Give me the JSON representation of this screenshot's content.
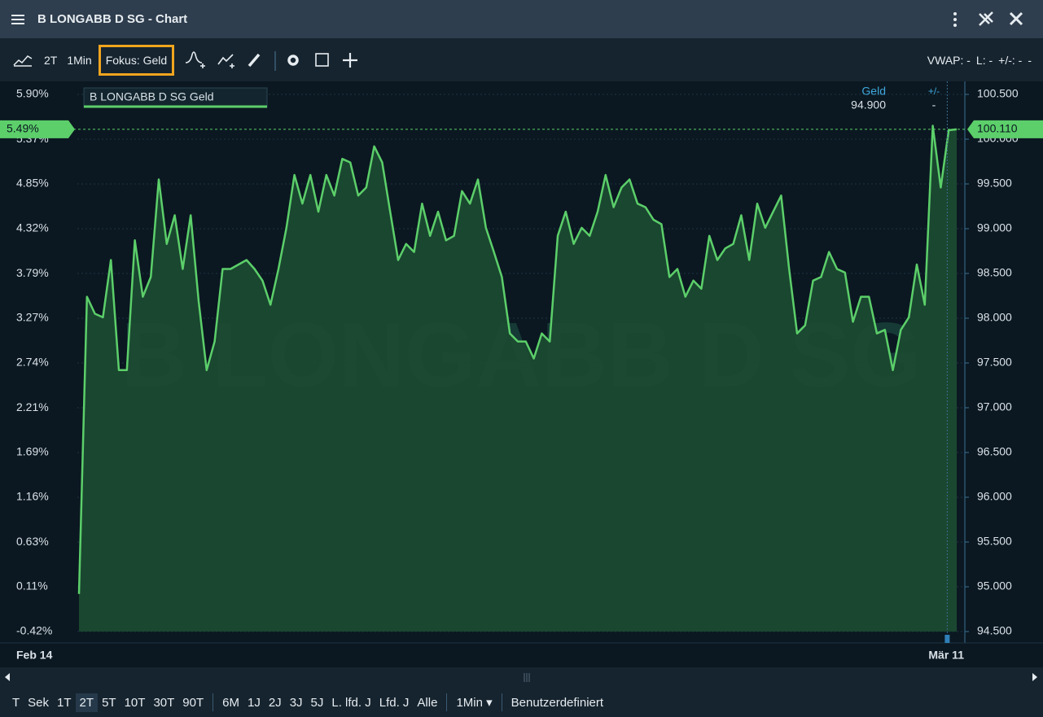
{
  "window": {
    "title": "B LONGABB D SG - Chart"
  },
  "toolbar": {
    "items": [
      "2T",
      "1Min"
    ],
    "focus": "Fokus: Geld",
    "status": [
      "VWAP: -",
      "L: -",
      "+/-: -",
      "-"
    ]
  },
  "info": {
    "bid_label": "Geld",
    "bid_value": "94.900",
    "change_label": "+/-",
    "change_value": "-"
  },
  "watermark": "B LONGABB D SG",
  "chart_data": {
    "type": "line",
    "series": [
      {
        "name": "B LONGABB D SG Geld",
        "color": "#5ccf6a",
        "values": [
          94.92,
          98.24,
          98.05,
          98.01,
          98.65,
          97.42,
          97.42,
          98.87,
          98.24,
          98.46,
          99.55,
          98.83,
          99.15,
          98.55,
          99.15,
          98.19,
          97.42,
          97.74,
          98.55,
          98.55,
          98.6,
          98.65,
          98.55,
          98.42,
          98.15,
          98.55,
          99.01,
          99.6,
          99.28,
          99.6,
          99.19,
          99.6,
          99.37,
          99.78,
          99.74,
          99.37,
          99.46,
          99.92,
          99.74,
          99.19,
          98.65,
          98.83,
          98.74,
          99.28,
          98.92,
          99.19,
          98.87,
          98.92,
          99.42,
          99.28,
          99.55,
          99.01,
          98.74,
          98.46,
          97.83,
          97.74,
          97.74,
          97.55,
          97.83,
          97.74,
          98.92,
          99.19,
          98.83,
          99.01,
          98.92,
          99.19,
          99.6,
          99.24,
          99.46,
          99.55,
          99.28,
          99.24,
          99.1,
          99.05,
          98.46,
          98.55,
          98.24,
          98.42,
          98.33,
          98.92,
          98.65,
          98.78,
          98.83,
          99.15,
          98.65,
          99.28,
          99.01,
          99.19,
          99.37,
          98.55,
          97.83,
          97.92,
          98.42,
          98.46,
          98.74,
          98.55,
          98.51,
          97.96,
          98.24,
          98.24,
          97.83,
          97.87,
          97.42,
          97.87,
          98.01,
          98.6,
          98.15,
          100.15,
          99.46,
          100.1,
          100.11
        ]
      }
    ],
    "categories": [
      "Feb 14",
      null,
      null,
      null,
      null,
      null,
      null,
      null,
      null,
      null,
      null,
      null,
      null,
      null,
      null,
      null,
      null,
      null,
      null,
      null,
      null,
      null,
      null,
      null,
      null,
      null,
      null,
      null,
      null,
      null,
      null,
      null,
      null,
      null,
      null,
      null,
      null,
      null,
      null,
      null,
      null,
      null,
      null,
      null,
      null,
      null,
      null,
      null,
      null,
      null,
      null,
      null,
      null,
      null,
      null,
      null,
      null,
      null,
      null,
      null,
      null,
      null,
      null,
      null,
      null,
      null,
      null,
      null,
      null,
      null,
      null,
      null,
      null,
      null,
      null,
      null,
      null,
      null,
      null,
      null,
      null,
      null,
      null,
      null,
      null,
      null,
      null,
      null,
      null,
      null,
      null,
      null,
      null,
      null,
      null,
      null,
      null,
      null,
      null,
      null,
      null,
      null,
      null,
      null,
      null,
      null,
      null,
      null,
      "Mär 11",
      null,
      null
    ],
    "ylim": [
      94.5,
      100.5
    ],
    "yticks": [
      {
        "value": 100.5,
        "label": "100.500"
      },
      {
        "value": 100,
        "label": "100.000"
      },
      {
        "value": 99.5,
        "label": "99.500"
      },
      {
        "value": 99,
        "label": "99.000"
      },
      {
        "value": 98.5,
        "label": "98.500"
      },
      {
        "value": 98,
        "label": "98.000"
      },
      {
        "value": 97.5,
        "label": "97.500"
      },
      {
        "value": 97,
        "label": "97.000"
      },
      {
        "value": 96.5,
        "label": "96.500"
      },
      {
        "value": 96,
        "label": "96.000"
      },
      {
        "value": 95.5,
        "label": "95.500"
      },
      {
        "value": 95,
        "label": "95.000"
      },
      {
        "value": 94.5,
        "label": "94.500"
      }
    ],
    "y2lim": [
      -0.42,
      5.9
    ],
    "y2ticks": [
      {
        "value": 5.9,
        "label": "5.90%"
      },
      {
        "value": 5.37,
        "label": "5.37%"
      },
      {
        "value": 4.85,
        "label": "4.85%"
      },
      {
        "value": 4.32,
        "label": "4.32%"
      },
      {
        "value": 3.79,
        "label": "3.79%"
      },
      {
        "value": 3.27,
        "label": "3.27%"
      },
      {
        "value": 2.74,
        "label": "2.74%"
      },
      {
        "value": 2.21,
        "label": "2.21%"
      },
      {
        "value": 1.69,
        "label": "1.69%"
      },
      {
        "value": 1.16,
        "label": "1.16%"
      },
      {
        "value": 0.63,
        "label": "0.63%"
      },
      {
        "value": 0.11,
        "label": "0.11%"
      },
      {
        "value": -0.42,
        "label": "-0.42%"
      }
    ],
    "last_label": "100.110",
    "last_pct_label": "5.49%",
    "grid": true
  },
  "bottom_bar": {
    "tabs": [
      "T",
      "Sek",
      "1T",
      "2T",
      "5T",
      "10T",
      "30T",
      "90T",
      "6M",
      "1J",
      "2J",
      "3J",
      "5J",
      "L. lfd. J",
      "Lfd. J",
      "Alle",
      "1Min ▾",
      "Benutzerdefiniert"
    ],
    "selected_index": 3
  }
}
